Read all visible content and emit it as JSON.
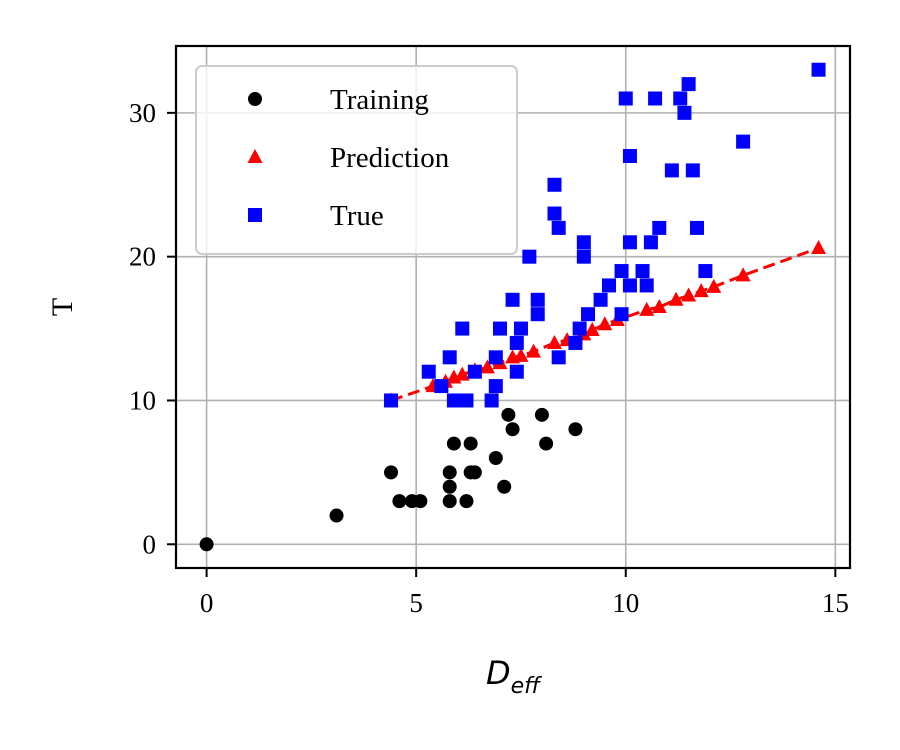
{
  "chart_data": {
    "type": "scatter",
    "title": "",
    "xlabel_main": "D",
    "xlabel_sub": "eff",
    "ylabel": "T",
    "xlim": [
      -0.73,
      15.35
    ],
    "ylim": [
      -1.65,
      34.65
    ],
    "xticks": [
      0,
      5,
      10,
      15
    ],
    "yticks": [
      0,
      10,
      20,
      30
    ],
    "xtick_labels": [
      "0",
      "5",
      "10",
      "15"
    ],
    "ytick_labels": [
      "0",
      "10",
      "20",
      "30"
    ],
    "grid": true,
    "legend_position": "top-left",
    "series": [
      {
        "name": "Training",
        "marker": "circle",
        "color": "#000000",
        "points": [
          [
            0,
            0
          ],
          [
            3.1,
            2
          ],
          [
            4.4,
            5
          ],
          [
            4.6,
            3
          ],
          [
            4.9,
            3
          ],
          [
            5.1,
            3
          ],
          [
            5.8,
            5
          ],
          [
            5.8,
            4
          ],
          [
            5.8,
            3
          ],
          [
            5.9,
            7
          ],
          [
            6.2,
            3
          ],
          [
            6.3,
            7
          ],
          [
            6.3,
            5
          ],
          [
            6.4,
            5
          ],
          [
            6.9,
            6
          ],
          [
            7.1,
            4
          ],
          [
            7.2,
            9
          ],
          [
            7.3,
            8
          ],
          [
            8.0,
            9
          ],
          [
            8.1,
            7
          ],
          [
            8.8,
            8
          ]
        ]
      },
      {
        "name": "Prediction",
        "marker": "triangle",
        "color": "#ff0000",
        "line_style": "dashed",
        "points": [
          [
            4.4,
            10
          ],
          [
            5.4,
            11
          ],
          [
            5.7,
            11.3
          ],
          [
            5.9,
            11.6
          ],
          [
            6.1,
            11.8
          ],
          [
            6.4,
            12.1
          ],
          [
            6.7,
            12.3
          ],
          [
            7.0,
            12.6
          ],
          [
            7.3,
            13
          ],
          [
            7.5,
            13.1
          ],
          [
            7.8,
            13.4
          ],
          [
            8.3,
            14
          ],
          [
            8.6,
            14.2
          ],
          [
            9.0,
            14.6
          ],
          [
            9.2,
            14.9
          ],
          [
            9.5,
            15.3
          ],
          [
            9.8,
            15.6
          ],
          [
            10.5,
            16.3
          ],
          [
            10.8,
            16.5
          ],
          [
            11.2,
            17
          ],
          [
            11.5,
            17.3
          ],
          [
            11.8,
            17.6
          ],
          [
            12.1,
            17.9
          ],
          [
            12.8,
            18.7
          ],
          [
            14.6,
            20.6
          ]
        ]
      },
      {
        "name": "True",
        "marker": "square",
        "color": "#0000ff",
        "points": [
          [
            4.4,
            10
          ],
          [
            5.3,
            12
          ],
          [
            5.6,
            11
          ],
          [
            5.8,
            13
          ],
          [
            5.9,
            10
          ],
          [
            6.1,
            15
          ],
          [
            6.2,
            10
          ],
          [
            6.4,
            12
          ],
          [
            6.8,
            10
          ],
          [
            6.9,
            11
          ],
          [
            7.0,
            15
          ],
          [
            6.9,
            13
          ],
          [
            7.3,
            17
          ],
          [
            7.4,
            12
          ],
          [
            7.4,
            14
          ],
          [
            7.5,
            15
          ],
          [
            7.7,
            20
          ],
          [
            7.9,
            16
          ],
          [
            7.9,
            17
          ],
          [
            8.3,
            25
          ],
          [
            8.3,
            23
          ],
          [
            8.4,
            22
          ],
          [
            8.4,
            13
          ],
          [
            8.8,
            14
          ],
          [
            8.9,
            15
          ],
          [
            9.0,
            21
          ],
          [
            9.0,
            20
          ],
          [
            9.1,
            16
          ],
          [
            9.4,
            17
          ],
          [
            9.6,
            18
          ],
          [
            9.9,
            19
          ],
          [
            9.9,
            16
          ],
          [
            10.0,
            31
          ],
          [
            10.1,
            27
          ],
          [
            10.1,
            21
          ],
          [
            10.1,
            18
          ],
          [
            10.4,
            19
          ],
          [
            10.5,
            18
          ],
          [
            10.6,
            21
          ],
          [
            10.7,
            31
          ],
          [
            10.8,
            22
          ],
          [
            11.1,
            26
          ],
          [
            11.3,
            31
          ],
          [
            11.4,
            30
          ],
          [
            11.5,
            32
          ],
          [
            11.6,
            26
          ],
          [
            11.7,
            22
          ],
          [
            11.9,
            19
          ],
          [
            12.8,
            28
          ],
          [
            14.6,
            33
          ]
        ]
      }
    ]
  }
}
